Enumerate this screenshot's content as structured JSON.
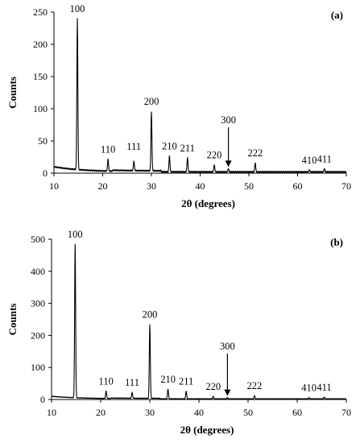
{
  "chart_data": [
    {
      "type": "line",
      "panel_label": "(a)",
      "xlabel": "2θ (degrees)",
      "ylabel": "Counts",
      "xlim": [
        10,
        70
      ],
      "ylim": [
        0,
        250
      ],
      "x_ticks": [
        "10",
        "20",
        "30",
        "40",
        "50",
        "60",
        "70"
      ],
      "y_ticks": [
        "0",
        "50",
        "100",
        "150",
        "200",
        "250"
      ],
      "grid": false,
      "baseline": 8,
      "peaks": [
        {
          "x": 14.8,
          "y": 240,
          "label": "100"
        },
        {
          "x": 21.1,
          "y": 22,
          "label": "110"
        },
        {
          "x": 26.4,
          "y": 19,
          "label": "111"
        },
        {
          "x": 30.0,
          "y": 96,
          "label": "200"
        },
        {
          "x": 33.7,
          "y": 27,
          "label": "210"
        },
        {
          "x": 37.4,
          "y": 24,
          "label": "211"
        },
        {
          "x": 42.9,
          "y": 13,
          "label": "220"
        },
        {
          "x": 45.8,
          "y": 7,
          "label": "300"
        },
        {
          "x": 51.3,
          "y": 16,
          "label": "222"
        },
        {
          "x": 62.4,
          "y": 5,
          "label": "410"
        },
        {
          "x": 65.5,
          "y": 7,
          "label": "411"
        }
      ],
      "arrow_label": "300"
    },
    {
      "type": "line",
      "panel_label": "(b)",
      "xlabel": "2θ (degrees)",
      "ylabel": "Counts",
      "xlim": [
        10,
        70
      ],
      "ylim": [
        0,
        500
      ],
      "x_ticks": [
        "10",
        "20",
        "30",
        "40",
        "50",
        "60",
        "70"
      ],
      "y_ticks": [
        "0",
        "100",
        "200",
        "300",
        "400",
        "500"
      ],
      "grid": false,
      "baseline": 8,
      "peaks": [
        {
          "x": 14.8,
          "y": 485,
          "label": "100"
        },
        {
          "x": 21.1,
          "y": 27,
          "label": "110"
        },
        {
          "x": 26.4,
          "y": 22,
          "label": "111"
        },
        {
          "x": 30.0,
          "y": 235,
          "label": "200"
        },
        {
          "x": 33.7,
          "y": 33,
          "label": "210"
        },
        {
          "x": 37.4,
          "y": 26,
          "label": "211"
        },
        {
          "x": 42.9,
          "y": 10,
          "label": "220"
        },
        {
          "x": 45.8,
          "y": 6,
          "label": "300"
        },
        {
          "x": 51.3,
          "y": 12,
          "label": "222"
        },
        {
          "x": 62.4,
          "y": 6,
          "label": "410"
        },
        {
          "x": 65.5,
          "y": 8,
          "label": "411"
        }
      ],
      "arrow_label": "300"
    }
  ]
}
